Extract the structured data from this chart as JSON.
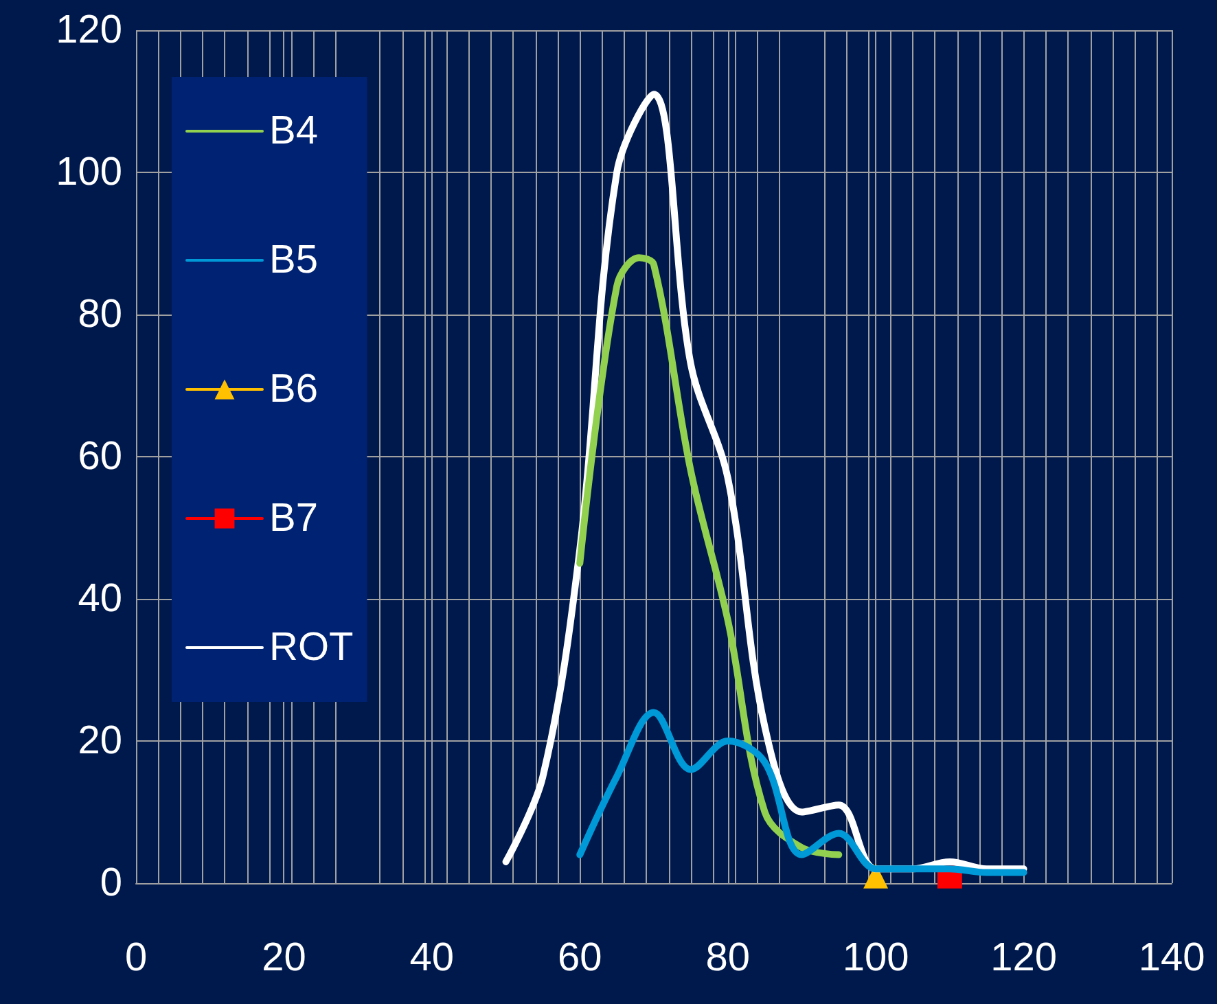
{
  "chart_data": {
    "type": "line",
    "xlim": [
      0,
      140
    ],
    "xticks": [
      0,
      20,
      40,
      60,
      80,
      100,
      120,
      140
    ],
    "ylim": [
      0,
      120
    ],
    "yticks": [
      0,
      20,
      40,
      60,
      80,
      100,
      120
    ],
    "grid": true,
    "legend": "left",
    "marker": "none",
    "line_style": "solid",
    "series": [
      {
        "name": "B4",
        "color": "#92d050",
        "x": [
          60,
          65,
          68,
          70,
          75,
          80,
          85,
          90,
          95
        ],
        "values": [
          45,
          84,
          88,
          87,
          58,
          37,
          10,
          5,
          4
        ]
      },
      {
        "name": "B5",
        "color": "#0099d8",
        "x": [
          60,
          65,
          70,
          75,
          80,
          85,
          90,
          95,
          100,
          105,
          110,
          115,
          120
        ],
        "values": [
          4,
          15,
          24,
          16,
          20,
          17,
          4,
          7,
          2,
          2,
          2,
          1.5,
          1.5
        ]
      },
      {
        "name": "B6",
        "color": "#ffc000",
        "marker": "triangle",
        "x": [
          100
        ],
        "values": [
          1
        ]
      },
      {
        "name": "B7",
        "color": "#ff0000",
        "marker": "square",
        "x": [
          110
        ],
        "values": [
          1
        ]
      },
      {
        "name": "ROT",
        "color": "#ffffff",
        "x": [
          50,
          55,
          60,
          65,
          70,
          75,
          80,
          85,
          90,
          95,
          100,
          105,
          110,
          115,
          120
        ],
        "values": [
          3,
          15,
          47,
          100,
          111,
          73,
          57,
          22,
          10,
          11,
          2,
          2,
          3,
          2,
          2
        ]
      }
    ]
  }
}
